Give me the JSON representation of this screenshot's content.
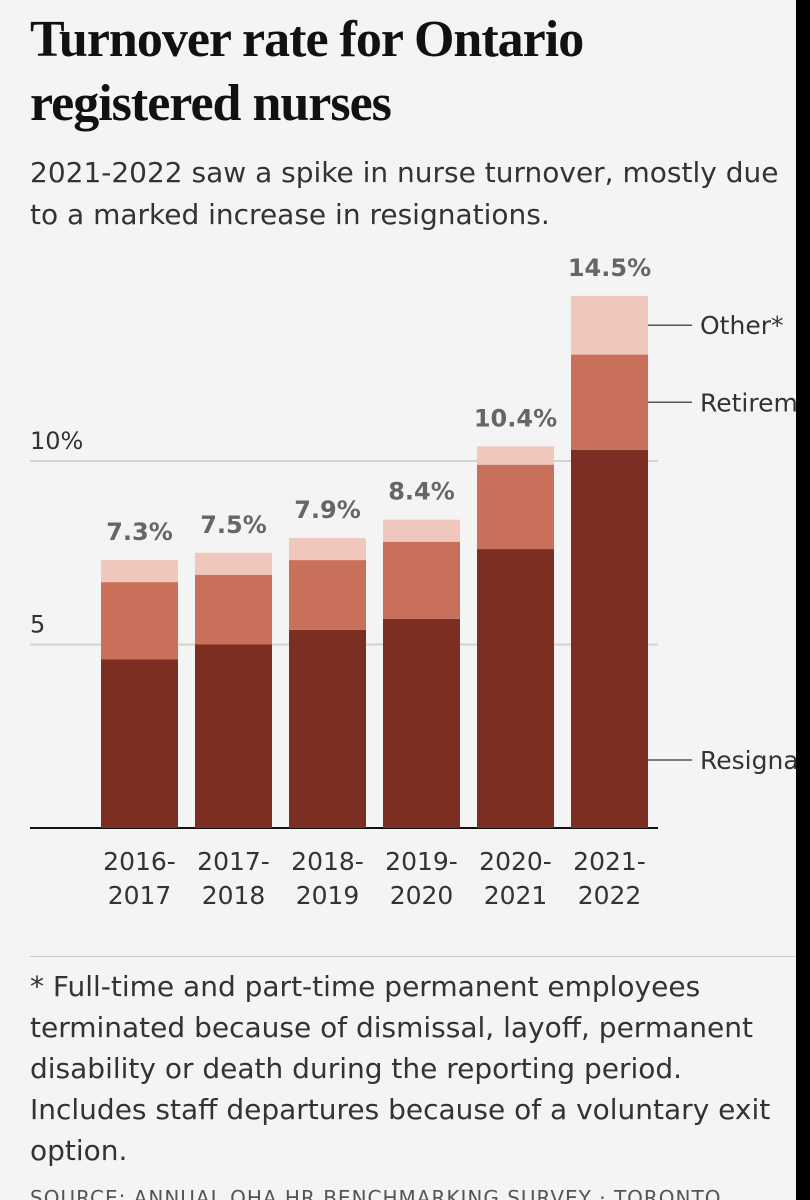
{
  "title": "Turnover rate for Ontario registered nurses",
  "subtitle": "2021-2022 saw a spike in nurse turnover, mostly due to a marked increase in resignations.",
  "footnote": "* Full-time and part-time permanent employees terminated because of dismissal, layoff, permanent disability or death during the reporting period. Includes staff departures because of a voluntary exit option.",
  "source": "SOURCE: ANNUAL OHA HR BENCHMARKING SURVEY · TORONTO",
  "colors": {
    "resignations": "#7b2e21",
    "retirements": "#c8705a",
    "other": "#efc7bd"
  },
  "chart_data": {
    "type": "bar",
    "stacked": true,
    "categories": [
      [
        "2016-",
        "2017"
      ],
      [
        "2017-",
        "2018"
      ],
      [
        "2018-",
        "2019"
      ],
      [
        "2019-",
        "2020"
      ],
      [
        "2020-",
        "2021"
      ],
      [
        "2021-",
        "2022"
      ]
    ],
    "series": [
      {
        "name": "Resignat",
        "key": "resignations",
        "values": [
          4.6,
          5.0,
          5.4,
          5.7,
          7.6,
          10.3
        ]
      },
      {
        "name": "Retireme",
        "key": "retirements",
        "values": [
          2.1,
          1.9,
          1.9,
          2.1,
          2.3,
          2.6
        ]
      },
      {
        "name": "Other*",
        "key": "other",
        "values": [
          0.6,
          0.6,
          0.6,
          0.6,
          0.5,
          1.6
        ]
      }
    ],
    "totals": [
      "7.3%",
      "7.5%",
      "7.9%",
      "8.4%",
      "10.4%",
      "14.5%"
    ],
    "yticks": [
      {
        "value": 5,
        "label": "5"
      },
      {
        "value": 10,
        "label": "10%"
      }
    ],
    "ylim": [
      0,
      14.5
    ],
    "grid": true,
    "legend": "labels right of last bar"
  }
}
